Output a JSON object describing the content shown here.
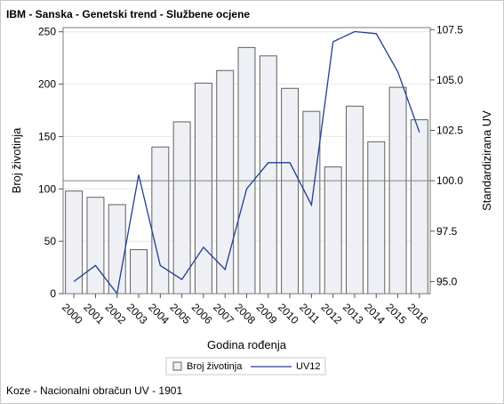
{
  "chart_data": {
    "type": "bar",
    "title": "IBM - Sanska - Genetski trend - Službene ocjene",
    "footnote": "Koze - Nacionalni obračun UV - 1901",
    "xlabel": "Godina rođenja",
    "ylabel": "Broj životinja",
    "y2label": "Standardizirana UV",
    "categories": [
      "2000",
      "2001",
      "2002",
      "2003",
      "2004",
      "2005",
      "2006",
      "2007",
      "2008",
      "2009",
      "2010",
      "2011",
      "2012",
      "2013",
      "2014",
      "2015",
      "2016"
    ],
    "ylim": [
      0,
      254
    ],
    "yticks": [
      "0",
      "50",
      "100",
      "150",
      "200",
      "250"
    ],
    "y2lim": [
      94.4,
      107.6
    ],
    "y2ticks": [
      "95.0",
      "97.5",
      "100.0",
      "102.5",
      "105.0",
      "107.5"
    ],
    "reference_line_y2": 100.0,
    "series": [
      {
        "name": "Broj životinja",
        "type": "bar",
        "axis": "left",
        "values": [
          98,
          92,
          85,
          42,
          140,
          164,
          201,
          213,
          235,
          227,
          196,
          174,
          121,
          179,
          145,
          197,
          166
        ]
      },
      {
        "name": "UV12",
        "type": "line",
        "axis": "right",
        "values": [
          95.0,
          95.8,
          94.4,
          100.3,
          95.8,
          95.1,
          96.7,
          95.6,
          99.6,
          100.9,
          100.9,
          98.8,
          106.9,
          107.4,
          107.3,
          105.4,
          102.4
        ]
      }
    ],
    "legend": {
      "position": "bottom",
      "items": [
        "Broj životinja",
        "UV12"
      ]
    },
    "colors": {
      "bar_fill": "#eef0f5",
      "bar_stroke": "#606060",
      "line": "#1f3f8f",
      "reference": "#808080",
      "grid": "#e8e8e8"
    },
    "grid": true
  }
}
